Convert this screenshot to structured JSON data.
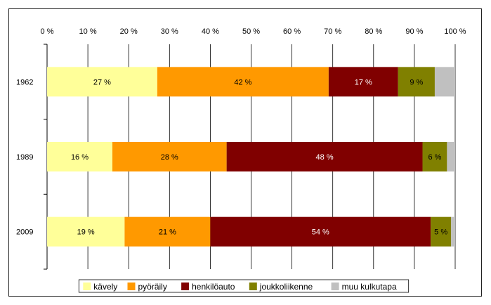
{
  "chart_data": {
    "type": "bar",
    "orientation": "horizontal",
    "stacked": true,
    "categories": [
      "1962",
      "1989",
      "2009"
    ],
    "x_ticks": [
      "0 %",
      "10 %",
      "20 %",
      "30 %",
      "40 %",
      "50 %",
      "60 %",
      "70 %",
      "80 %",
      "90 %",
      "100 %"
    ],
    "xlim": [
      0,
      100
    ],
    "x_axis_position": "top",
    "grid": true,
    "legend_position": "bottom",
    "series": [
      {
        "name": "kävely",
        "color": "#FFFF99",
        "values": [
          27,
          16,
          19
        ],
        "labels": [
          "27 %",
          "16 %",
          "19 %"
        ]
      },
      {
        "name": "pyöräily",
        "color": "#FF9900",
        "values": [
          42,
          28,
          21
        ],
        "labels": [
          "42 %",
          "28 %",
          "21 %"
        ]
      },
      {
        "name": "henkilöauto",
        "color": "#800000",
        "values": [
          17,
          48,
          54
        ],
        "labels": [
          "17 %",
          "48 %",
          "54 %"
        ]
      },
      {
        "name": "joukkoliikenne",
        "color": "#808000",
        "values": [
          9,
          6,
          5
        ],
        "labels": [
          "9 %",
          "6 %",
          "5 %"
        ]
      },
      {
        "name": "muu kulkutapa",
        "color": "#C0C0C0",
        "values": [
          5,
          2,
          1
        ],
        "labels": [
          "",
          "",
          ""
        ]
      }
    ],
    "label_colors": [
      "#000000",
      "#000000",
      "#FFFFFF",
      "#000000",
      "#000000"
    ]
  }
}
